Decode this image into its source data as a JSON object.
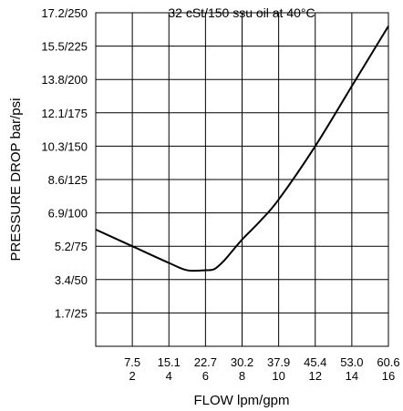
{
  "chart_data": {
    "type": "line",
    "title_partial": "32 cSt/150 ssu oil at 40°C",
    "xlabel": "FLOW lpm/gpm",
    "ylabel": "PRESSURE DROP bar/psi",
    "x_ticks_lpm": [
      "7.5",
      "15.1",
      "22.7",
      "30.2",
      "37.9",
      "45.4",
      "53.0",
      "60.6"
    ],
    "x_ticks_gpm": [
      "2",
      "4",
      "6",
      "8",
      "10",
      "12",
      "14",
      "16"
    ],
    "y_ticks": [
      "1.7/25",
      "3.4/50",
      "5.2/75",
      "6.9/100",
      "8.6/125",
      "10.3/150",
      "12.1/175",
      "13.8/200",
      "15.5/225",
      "17.2/250"
    ],
    "xlim_gpm": [
      0,
      16
    ],
    "ylim_psi": [
      0,
      250
    ],
    "grid": true,
    "series": [
      {
        "x_gpm": [
          0,
          2,
          4,
          5,
          6,
          6.5,
          7,
          7.5,
          8,
          9,
          10,
          12,
          14,
          16
        ],
        "y_psi": [
          87.5,
          75,
          62.5,
          57,
          57,
          58,
          64,
          72,
          80,
          94,
          110,
          150,
          195,
          240
        ]
      }
    ]
  }
}
